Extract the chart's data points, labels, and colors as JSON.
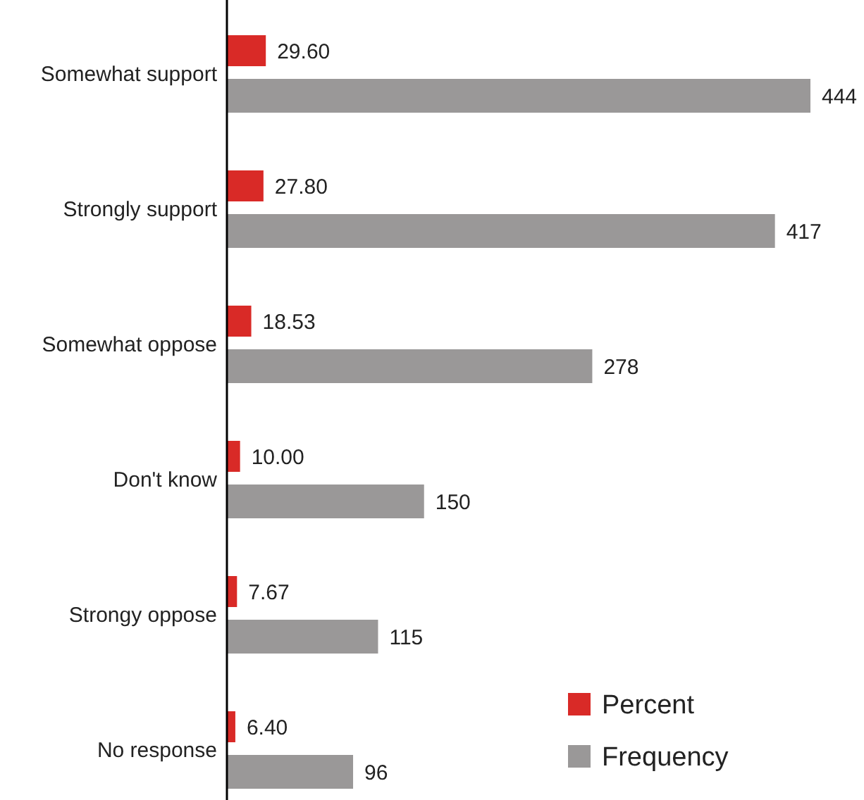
{
  "chart_data": {
    "type": "bar",
    "orientation": "horizontal",
    "categories": [
      "Somewhat support",
      "Strongly support",
      "Somewhat oppose",
      "Don't know",
      "Strongy oppose",
      "No response"
    ],
    "series": [
      {
        "name": "Percent",
        "color": "#d92a27",
        "values": [
          29.6,
          27.8,
          18.53,
          10.0,
          7.67,
          6.4
        ],
        "value_labels": [
          "29.60",
          "27.80",
          "18.53",
          "10.00",
          "7.67",
          "6.40"
        ]
      },
      {
        "name": "Frequency",
        "color": "#9a9898",
        "values": [
          444,
          417,
          278,
          150,
          115,
          96
        ],
        "value_labels": [
          "444",
          "417",
          "278",
          "150",
          "115",
          "96"
        ]
      }
    ],
    "legend": "bottom right"
  }
}
